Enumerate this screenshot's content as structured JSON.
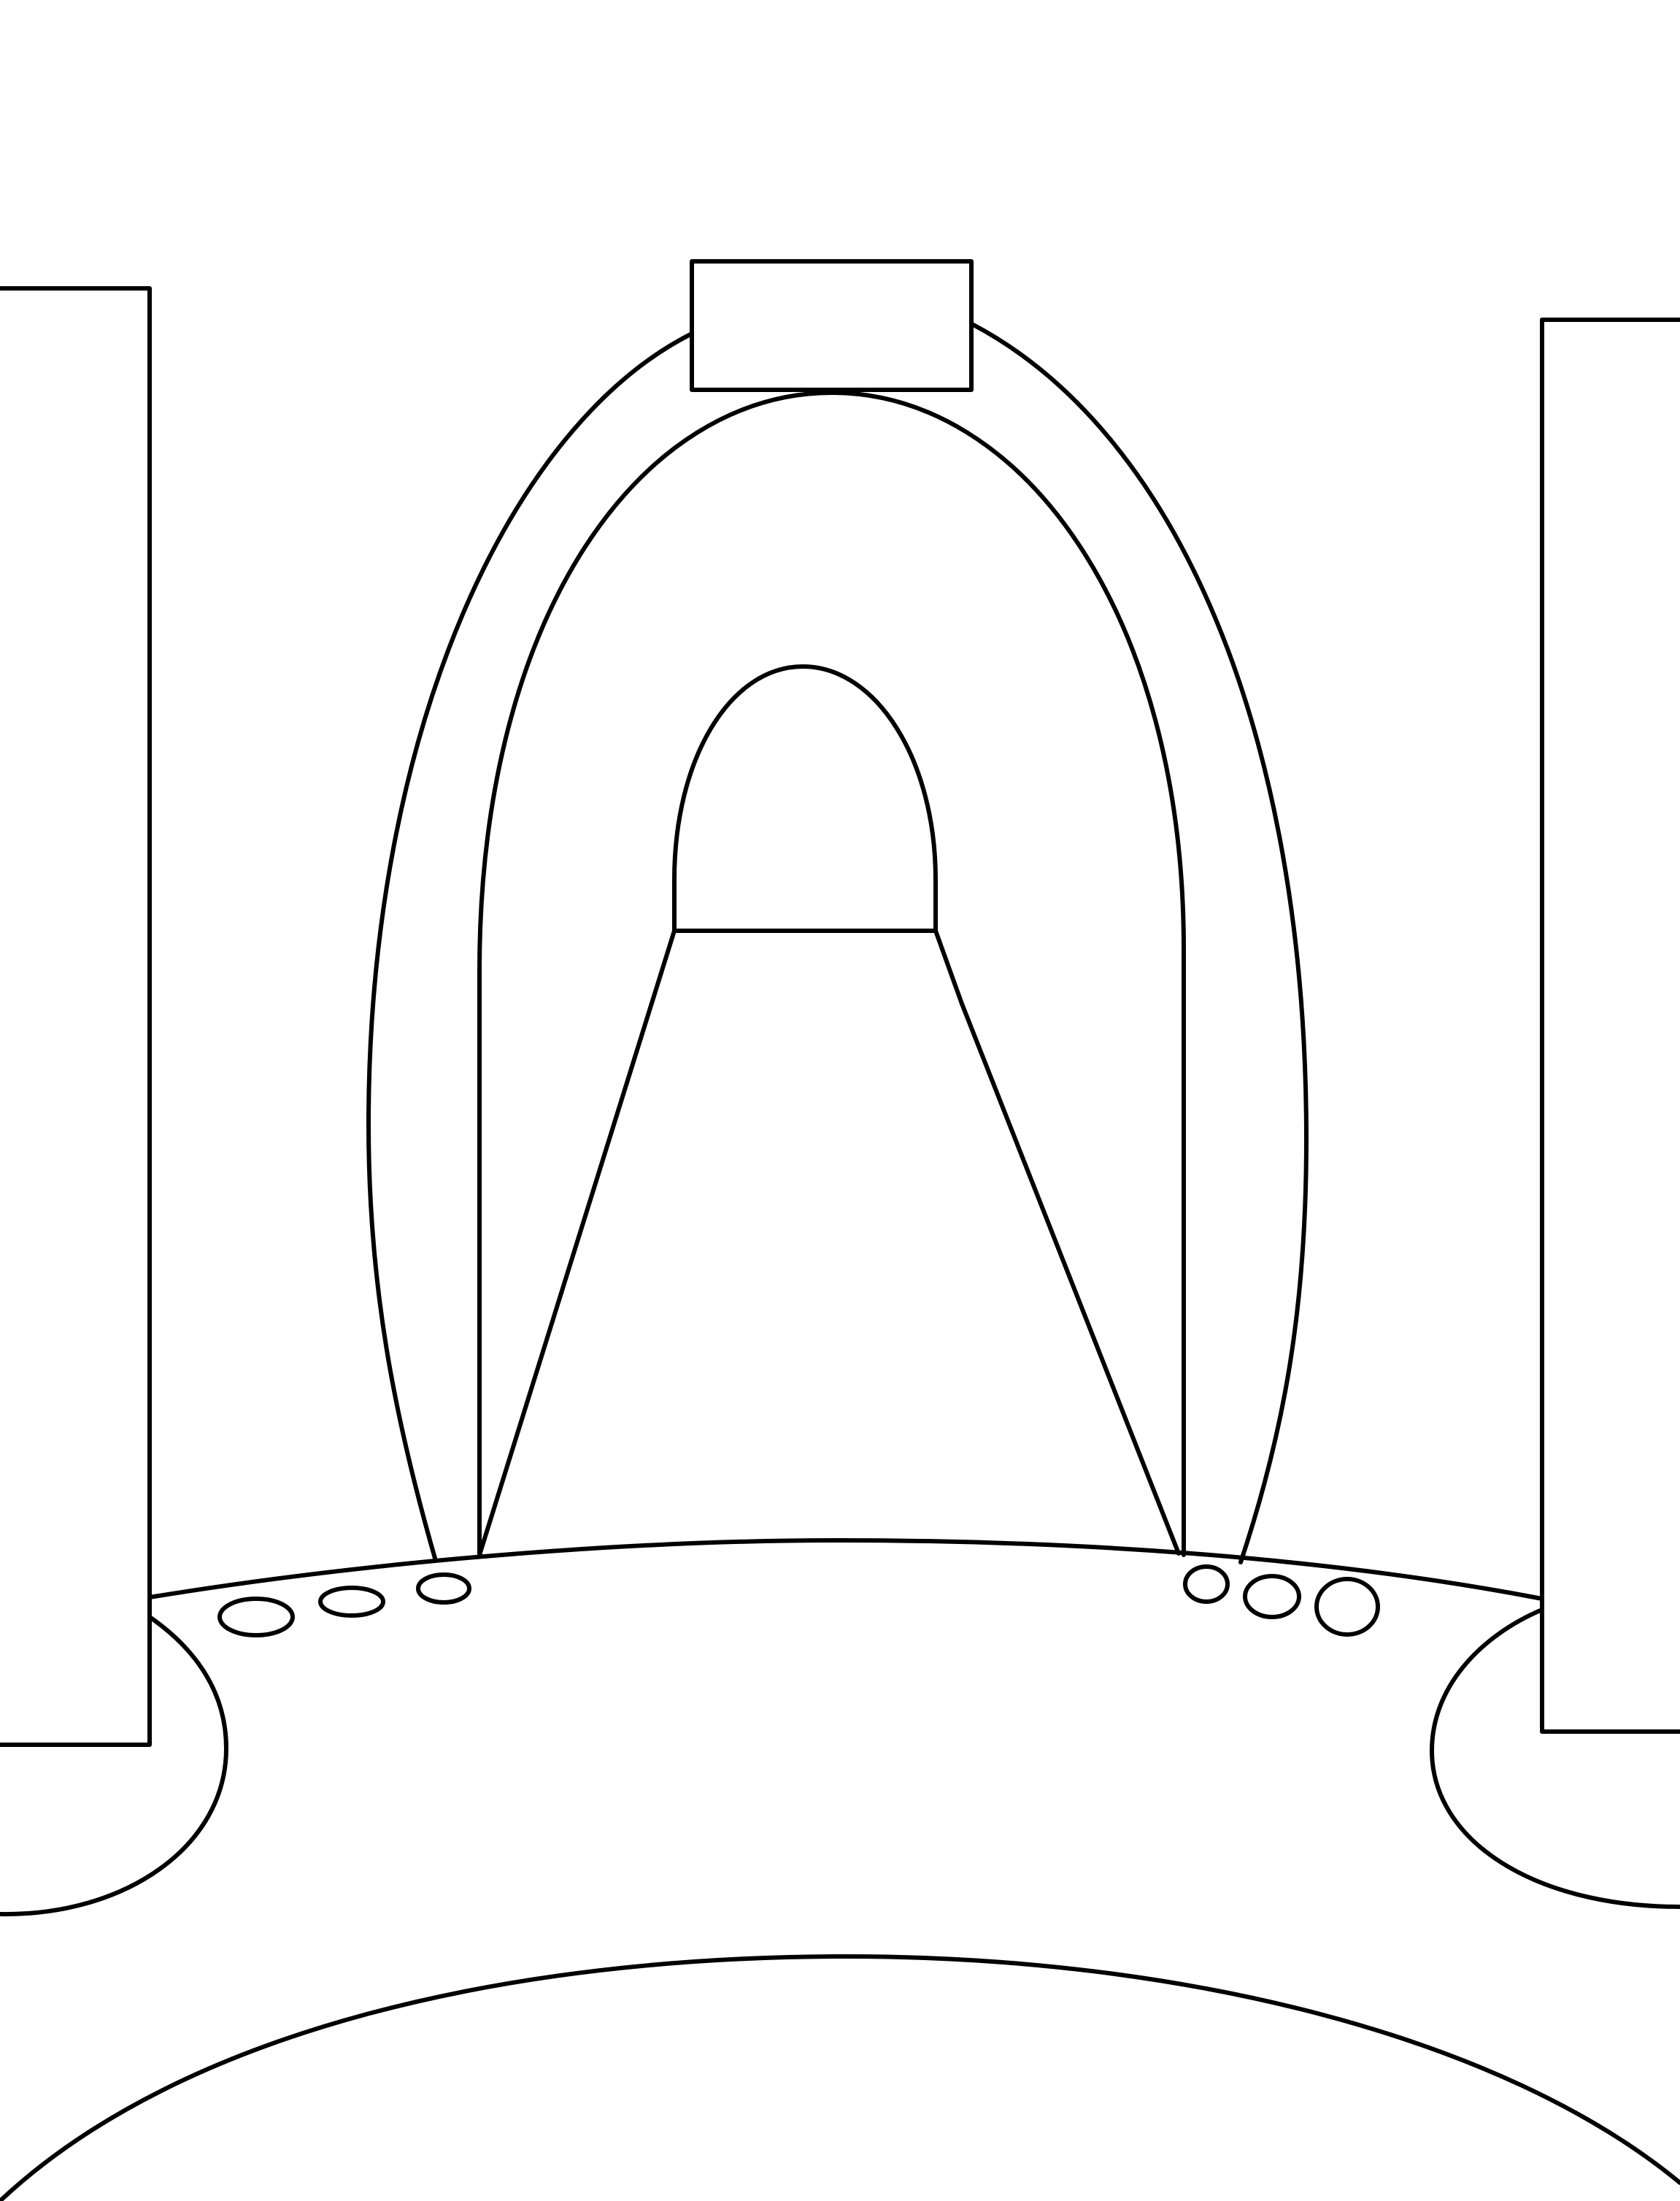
{
  "drawing": {
    "style": "black line art on white background",
    "stroke_color": "#000000",
    "background_color": "#ffffff",
    "shapes": [
      "left-panel",
      "right-panel",
      "top-label-box",
      "outer-arch",
      "inner-arch",
      "tunnel-opening",
      "floor-path",
      "console-top",
      "left-buttons",
      "right-buttons",
      "left-knob",
      "right-knob",
      "bottom-dome"
    ]
  }
}
